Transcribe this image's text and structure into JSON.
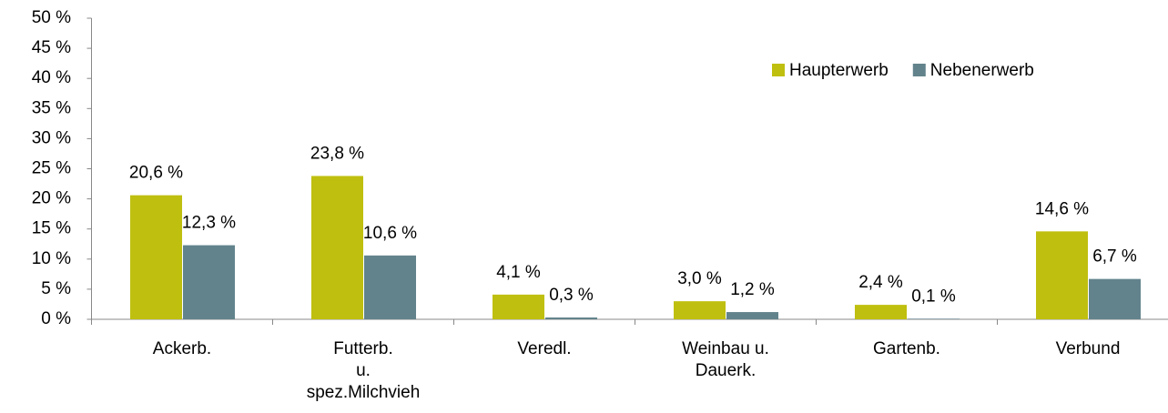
{
  "chart_data": {
    "type": "bar",
    "categories": [
      "Ackerb.",
      "Futterb.\nu.\nspez.Milchvieh",
      "Veredl.",
      "Weinbau u.\nDauerk.",
      "Gartenb.",
      "Verbund"
    ],
    "series": [
      {
        "name": "Haupterwerb",
        "color": "#bfbf10",
        "values": [
          20.6,
          23.8,
          4.1,
          3.0,
          2.4,
          14.6
        ],
        "value_labels": [
          "20,6 %",
          "23,8 %",
          "4,1 %",
          "3,0 %",
          "2,4 %",
          "14,6 %"
        ]
      },
      {
        "name": "Nebenerwerb",
        "color": "#62838c",
        "values": [
          12.3,
          10.6,
          0.3,
          1.2,
          0.1,
          6.7
        ],
        "value_labels": [
          "12,3 %",
          "10,6 %",
          "0,3 %",
          "1,2 %",
          "0,1 %",
          "6,7 %"
        ]
      }
    ],
    "ylim": [
      0,
      50
    ],
    "yticks": [
      {
        "value": 0,
        "label": "0 %"
      },
      {
        "value": 5,
        "label": "5 %"
      },
      {
        "value": 10,
        "label": "10 %"
      },
      {
        "value": 15,
        "label": "15 %"
      },
      {
        "value": 20,
        "label": "20 %"
      },
      {
        "value": 25,
        "label": "25 %"
      },
      {
        "value": 30,
        "label": "30 %"
      },
      {
        "value": 35,
        "label": "35 %"
      },
      {
        "value": 40,
        "label": "40 %"
      },
      {
        "value": 45,
        "label": "45 %"
      },
      {
        "value": 50,
        "label": "50 %"
      }
    ],
    "legend": "top-right"
  }
}
